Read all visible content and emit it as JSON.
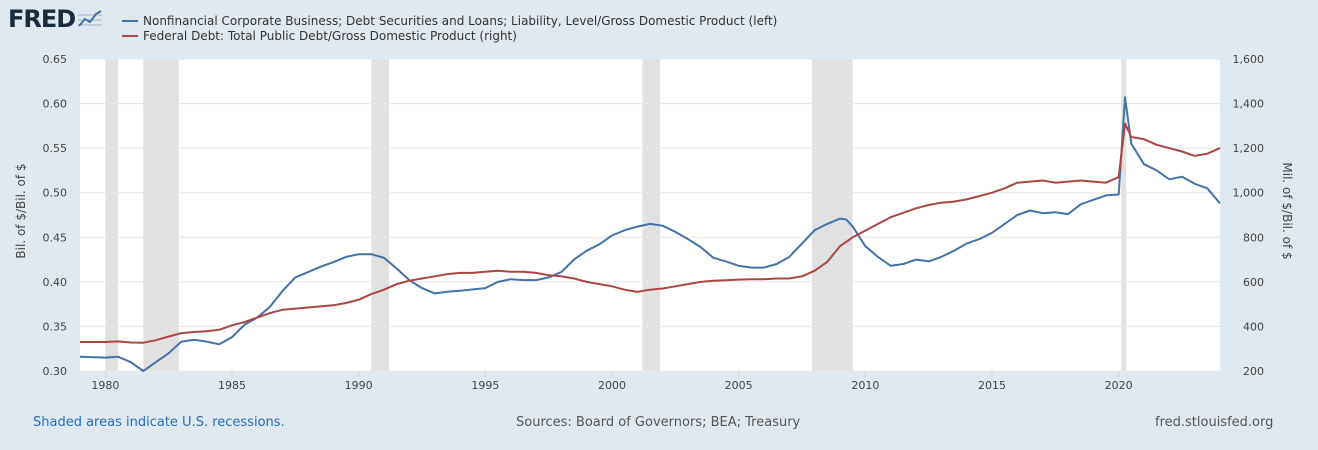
{
  "header": {
    "logo_text": "FRED",
    "logo_icon": "chart-line-icon"
  },
  "colors": {
    "series_blue": "#4572a7",
    "series_red": "#aa4643",
    "plot_background": "#ffffff",
    "page_background": "#e1e9f0",
    "recession_shade": "#e1e1e1",
    "footer_link": "#2a6ebb"
  },
  "footer": {
    "note": "Shaded areas indicate U.S. recessions.",
    "sources": "Sources: Board of Governors; BEA; Treasury",
    "site": "fred.stlouisfed.org"
  },
  "chart_data": {
    "type": "line",
    "x_range": [
      1979,
      2024.0
    ],
    "x_ticks": [
      1980,
      1985,
      1990,
      1995,
      2000,
      2005,
      2010,
      2015,
      2020
    ],
    "recessions": [
      [
        1980.0,
        1980.5
      ],
      [
        1981.5,
        1982.9
      ],
      [
        1990.5,
        1991.2
      ],
      [
        2001.2,
        2001.9
      ],
      [
        2007.9,
        2009.5
      ],
      [
        2020.1,
        2020.3
      ]
    ],
    "left_axis": {
      "label": "Bil. of $/Bil. of $",
      "range": [
        0.3,
        0.65
      ],
      "ticks": [
        "0.30",
        "0.35",
        "0.40",
        "0.45",
        "0.50",
        "0.55",
        "0.60",
        "0.65"
      ]
    },
    "right_axis": {
      "label": "Mil. of $/Bil. of $",
      "range": [
        200,
        1600
      ],
      "ticks": [
        "200",
        "400",
        "600",
        "800",
        "1,000",
        "1,200",
        "1,400",
        "1,600"
      ]
    },
    "series": [
      {
        "name": "Nonfinancial Corporate Business; Debt Securities and Loans; Liability, Level/Gross Domestic Product (left)",
        "axis": "left",
        "color": "#4572a7",
        "x": [
          1979.0,
          1980.0,
          1980.5,
          1981.0,
          1981.5,
          1982.0,
          1982.5,
          1983.0,
          1983.5,
          1984.0,
          1984.5,
          1985.0,
          1985.5,
          1986.0,
          1986.5,
          1987.0,
          1987.5,
          1988.0,
          1988.5,
          1989.0,
          1989.5,
          1990.0,
          1990.5,
          1991.0,
          1991.5,
          1992.0,
          1992.5,
          1993.0,
          1993.5,
          1994.0,
          1995.0,
          1995.5,
          1996.0,
          1996.5,
          1997.0,
          1997.5,
          1998.0,
          1998.5,
          1999.0,
          1999.5,
          2000.0,
          2000.5,
          2001.0,
          2001.5,
          2002.0,
          2002.5,
          2003.0,
          2003.5,
          2004.0,
          2004.5,
          2005.0,
          2005.5,
          2006.0,
          2006.5,
          2007.0,
          2007.5,
          2008.0,
          2008.5,
          2009.0,
          2009.25,
          2009.5,
          2010.0,
          2010.5,
          2011.0,
          2011.5,
          2012.0,
          2012.5,
          2013.0,
          2013.5,
          2014.0,
          2014.5,
          2015.0,
          2015.5,
          2016.0,
          2016.5,
          2017.0,
          2017.5,
          2018.0,
          2018.5,
          2019.0,
          2019.5,
          2020.0,
          2020.25,
          2020.5,
          2021.0,
          2021.5,
          2022.0,
          2022.5,
          2023.0,
          2023.5,
          2024.0
        ],
        "y": [
          0.316,
          0.315,
          0.316,
          0.31,
          0.3,
          0.31,
          0.32,
          0.333,
          0.335,
          0.333,
          0.33,
          0.338,
          0.352,
          0.36,
          0.372,
          0.39,
          0.405,
          0.411,
          0.417,
          0.422,
          0.428,
          0.431,
          0.431,
          0.427,
          0.415,
          0.402,
          0.393,
          0.387,
          0.389,
          0.39,
          0.393,
          0.4,
          0.403,
          0.402,
          0.402,
          0.405,
          0.411,
          0.425,
          0.435,
          0.442,
          0.452,
          0.458,
          0.462,
          0.465,
          0.463,
          0.456,
          0.448,
          0.439,
          0.427,
          0.423,
          0.418,
          0.416,
          0.416,
          0.42,
          0.428,
          0.443,
          0.458,
          0.465,
          0.471,
          0.47,
          0.462,
          0.44,
          0.428,
          0.418,
          0.42,
          0.425,
          0.423,
          0.428,
          0.435,
          0.443,
          0.448,
          0.455,
          0.465,
          0.475,
          0.48,
          0.477,
          0.478,
          0.476,
          0.487,
          0.492,
          0.497,
          0.498,
          0.607,
          0.555,
          0.532,
          0.525,
          0.515,
          0.518,
          0.51,
          0.505,
          0.488
        ]
      },
      {
        "name": "Federal Debt: Total Public Debt/Gross Domestic Product (right)",
        "axis": "right",
        "color": "#aa4643",
        "x": [
          1979.0,
          1980.0,
          1980.5,
          1981.0,
          1981.5,
          1982.0,
          1982.5,
          1983.0,
          1983.5,
          1984.0,
          1984.5,
          1985.0,
          1985.5,
          1986.0,
          1986.5,
          1987.0,
          1987.5,
          1988.0,
          1988.5,
          1989.0,
          1989.5,
          1990.0,
          1990.5,
          1991.0,
          1991.5,
          1992.0,
          1992.5,
          1993.0,
          1993.5,
          1994.0,
          1994.5,
          1995.0,
          1995.5,
          1996.0,
          1996.5,
          1997.0,
          1997.5,
          1998.0,
          1998.5,
          1999.0,
          1999.5,
          2000.0,
          2000.5,
          2001.0,
          2001.5,
          2002.0,
          2002.5,
          2003.0,
          2003.5,
          2004.0,
          2004.5,
          2005.0,
          2005.5,
          2006.0,
          2006.5,
          2007.0,
          2007.5,
          2008.0,
          2008.5,
          2009.0,
          2009.5,
          2010.0,
          2010.5,
          2011.0,
          2011.5,
          2012.0,
          2012.5,
          2013.0,
          2013.5,
          2014.0,
          2014.5,
          2015.0,
          2015.5,
          2016.0,
          2016.5,
          2017.0,
          2017.5,
          2018.0,
          2018.5,
          2019.0,
          2019.5,
          2020.0,
          2020.25,
          2020.5,
          2021.0,
          2021.5,
          2022.0,
          2022.5,
          2023.0,
          2023.5,
          2024.0
        ],
        "y": [
          330,
          330,
          333,
          328,
          327,
          338,
          355,
          370,
          375,
          378,
          385,
          405,
          420,
          440,
          460,
          475,
          480,
          485,
          490,
          495,
          505,
          520,
          545,
          565,
          590,
          605,
          615,
          625,
          635,
          640,
          640,
          645,
          650,
          645,
          645,
          640,
          630,
          625,
          615,
          600,
          590,
          580,
          565,
          555,
          565,
          570,
          580,
          590,
          600,
          605,
          607,
          610,
          612,
          612,
          615,
          615,
          625,
          650,
          690,
          760,
          800,
          830,
          860,
          890,
          910,
          930,
          945,
          955,
          960,
          970,
          985,
          1000,
          1020,
          1045,
          1050,
          1055,
          1045,
          1050,
          1055,
          1050,
          1045,
          1070,
          1310,
          1250,
          1240,
          1215,
          1200,
          1185,
          1165,
          1175,
          1200
        ]
      }
    ]
  }
}
